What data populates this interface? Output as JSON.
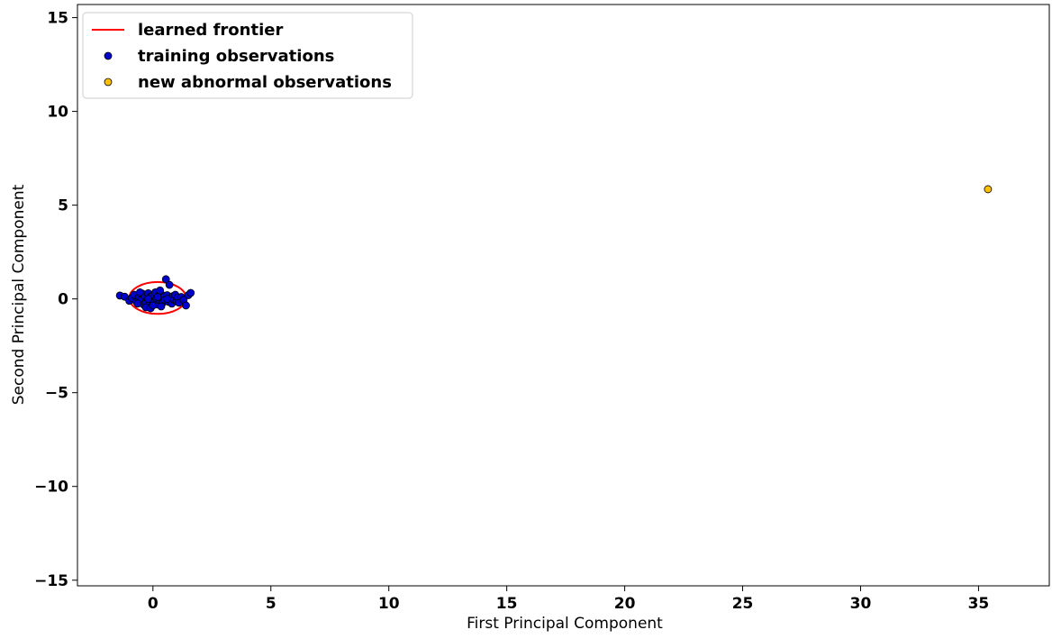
{
  "chart_data": {
    "type": "scatter",
    "title": "",
    "xlabel": "First Principal Component",
    "ylabel": "Second Principal Component",
    "xlim": [
      -3.2,
      38.0
    ],
    "ylim": [
      -15.3,
      15.7
    ],
    "xticks": [
      0,
      5,
      10,
      15,
      20,
      25,
      30,
      35
    ],
    "yticks": [
      -15,
      -10,
      -5,
      0,
      5,
      10,
      15
    ],
    "grid": false,
    "legend_position": "top-left",
    "legend": [
      {
        "label": "learned frontier",
        "kind": "line",
        "color": "#ff0000"
      },
      {
        "label": "training observations",
        "kind": "marker",
        "color": "#0000cc"
      },
      {
        "label": "new abnormal observations",
        "kind": "marker",
        "color": "#ffc000"
      }
    ],
    "frontier": {
      "name": "learned frontier",
      "shape": "ellipse",
      "center": [
        0.2,
        0.05
      ],
      "semi_axis_x": 1.2,
      "semi_axis_y": 0.85,
      "color": "#ff0000"
    },
    "series": [
      {
        "name": "training observations",
        "color": "#0000cc",
        "points": [
          [
            -1.4,
            0.18
          ],
          [
            -1.2,
            0.12
          ],
          [
            -1.0,
            -0.1
          ],
          [
            -0.9,
            0.05
          ],
          [
            -0.8,
            0.22
          ],
          [
            -0.7,
            -0.15
          ],
          [
            -0.6,
            0.1
          ],
          [
            -0.5,
            -0.05
          ],
          [
            -0.45,
            0.28
          ],
          [
            -0.4,
            -0.3
          ],
          [
            -0.35,
            0.15
          ],
          [
            -0.3,
            -0.18
          ],
          [
            -0.25,
            0.05
          ],
          [
            -0.2,
            0.3
          ],
          [
            -0.15,
            -0.25
          ],
          [
            -0.1,
            0.12
          ],
          [
            -0.05,
            -0.08
          ],
          [
            0.0,
            0.2
          ],
          [
            0.05,
            -0.15
          ],
          [
            0.1,
            0.35
          ],
          [
            0.15,
            0.0
          ],
          [
            0.2,
            -0.3
          ],
          [
            0.25,
            0.18
          ],
          [
            0.3,
            -0.1
          ],
          [
            0.35,
            0.25
          ],
          [
            0.4,
            -0.22
          ],
          [
            0.45,
            0.1
          ],
          [
            0.5,
            -0.05
          ],
          [
            0.55,
            1.05
          ],
          [
            0.6,
            0.2
          ],
          [
            0.65,
            -0.15
          ],
          [
            0.7,
            0.75
          ],
          [
            0.75,
            0.05
          ],
          [
            0.8,
            -0.25
          ],
          [
            0.85,
            0.15
          ],
          [
            0.9,
            -0.05
          ],
          [
            0.95,
            0.22
          ],
          [
            1.0,
            -0.12
          ],
          [
            1.05,
            0.08
          ],
          [
            1.1,
            -0.2
          ],
          [
            1.2,
            0.1
          ],
          [
            1.3,
            -0.05
          ],
          [
            1.4,
            -0.35
          ],
          [
            1.5,
            0.2
          ],
          [
            1.6,
            0.32
          ],
          [
            -0.3,
            -0.45
          ],
          [
            -0.1,
            -0.5
          ],
          [
            0.3,
            0.45
          ],
          [
            -0.55,
            0.35
          ],
          [
            0.0,
            -0.35
          ],
          [
            0.2,
            0.1
          ],
          [
            -0.2,
            0.0
          ],
          [
            0.6,
            0.0
          ],
          [
            0.35,
            -0.4
          ],
          [
            -0.65,
            -0.25
          ]
        ]
      },
      {
        "name": "new abnormal observations",
        "color": "#ffc000",
        "points": [
          [
            35.4,
            5.85
          ]
        ]
      }
    ]
  }
}
